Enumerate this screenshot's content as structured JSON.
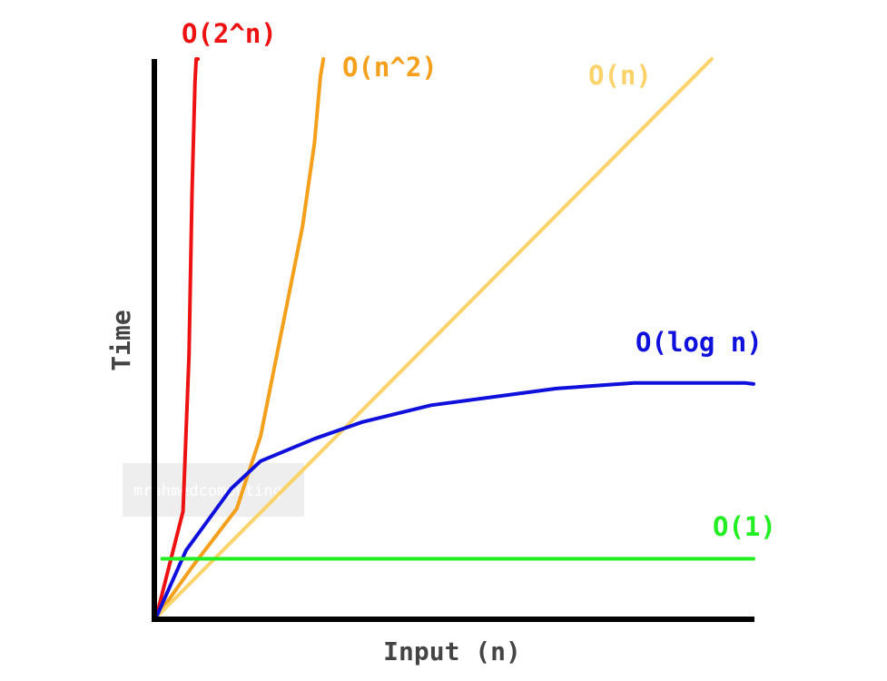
{
  "chart_data": {
    "type": "line",
    "title": "",
    "xlabel": "Input (n)",
    "ylabel": "Time",
    "xlim": [
      0,
      10
    ],
    "ylim": [
      0,
      10
    ],
    "grid": false,
    "series": [
      {
        "name": "O(2^n)",
        "color": "#ee1111",
        "x": [
          0,
          0.45,
          0.55,
          0.6,
          0.65,
          0.67,
          0.69,
          0.7
        ],
        "y": [
          0,
          1.9,
          4.7,
          7.6,
          9.6,
          10.0,
          10.0,
          10.0
        ]
      },
      {
        "name": "O(n^2)",
        "color": "#f5a01c",
        "x": [
          0,
          0.6,
          1.35,
          1.75,
          2.45,
          2.65,
          2.75,
          2.8
        ],
        "y": [
          0,
          0.9,
          1.95,
          3.25,
          7.0,
          8.5,
          9.7,
          10.0
        ]
      },
      {
        "name": "O(n)",
        "color": "#fcd36a",
        "x": [
          0,
          9.3
        ],
        "y": [
          0,
          10.0
        ]
      },
      {
        "name": "O(log n)",
        "color": "#1010dd",
        "x": [
          0,
          0.5,
          1.25,
          1.75,
          2.65,
          3.45,
          4.6,
          6.7,
          8.0,
          9.85,
          10.0
        ],
        "y": [
          0,
          1.2,
          2.3,
          2.8,
          3.2,
          3.5,
          3.8,
          4.1,
          4.2,
          4.2,
          4.18
        ]
      },
      {
        "name": "O(1)",
        "color": "#22ee22",
        "x": [
          0.1,
          10.0
        ],
        "y": [
          1.05,
          1.05
        ]
      }
    ]
  },
  "watermark": "mrahmedcomputing",
  "colors": {
    "axis": "#000000",
    "axis_label": "#444444",
    "watermark_bg": "#eeeeee"
  }
}
